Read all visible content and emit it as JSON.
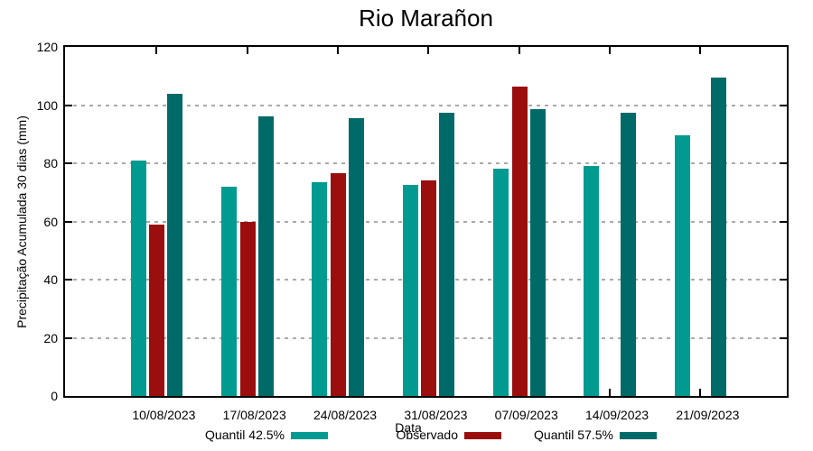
{
  "title": "Rio Marañon",
  "chart_data": {
    "type": "bar",
    "title": "Rio Marañon",
    "xlabel": "Data",
    "ylabel": "Precipitação Acumulada 30 dias (mm)",
    "ylim": [
      0,
      120
    ],
    "ytick_step": 20,
    "grid": "horizontal dotted gridlines at each ytick",
    "legend_position": "bottom",
    "categories": [
      "10/08/2023",
      "17/08/2023",
      "24/08/2023",
      "31/08/2023",
      "07/09/2023",
      "14/09/2023",
      "21/09/2023"
    ],
    "series": [
      {
        "name": "Quantil 42.5%",
        "color": "#009A91",
        "values": [
          81,
          72,
          73.5,
          72.5,
          78,
          79,
          89.5
        ]
      },
      {
        "name": "Observado",
        "color": "#9B0E0E",
        "values": [
          59,
          60,
          76.5,
          74,
          106.5,
          null,
          null
        ]
      },
      {
        "name": "Quantil 57.5%",
        "color": "#006A68",
        "values": [
          104,
          96,
          95.5,
          97.5,
          98.5,
          97.5,
          109.5
        ]
      }
    ]
  },
  "colors": {
    "axis": "#000000",
    "gridline": "#AAAAAA",
    "background": "#FFFFFF"
  }
}
